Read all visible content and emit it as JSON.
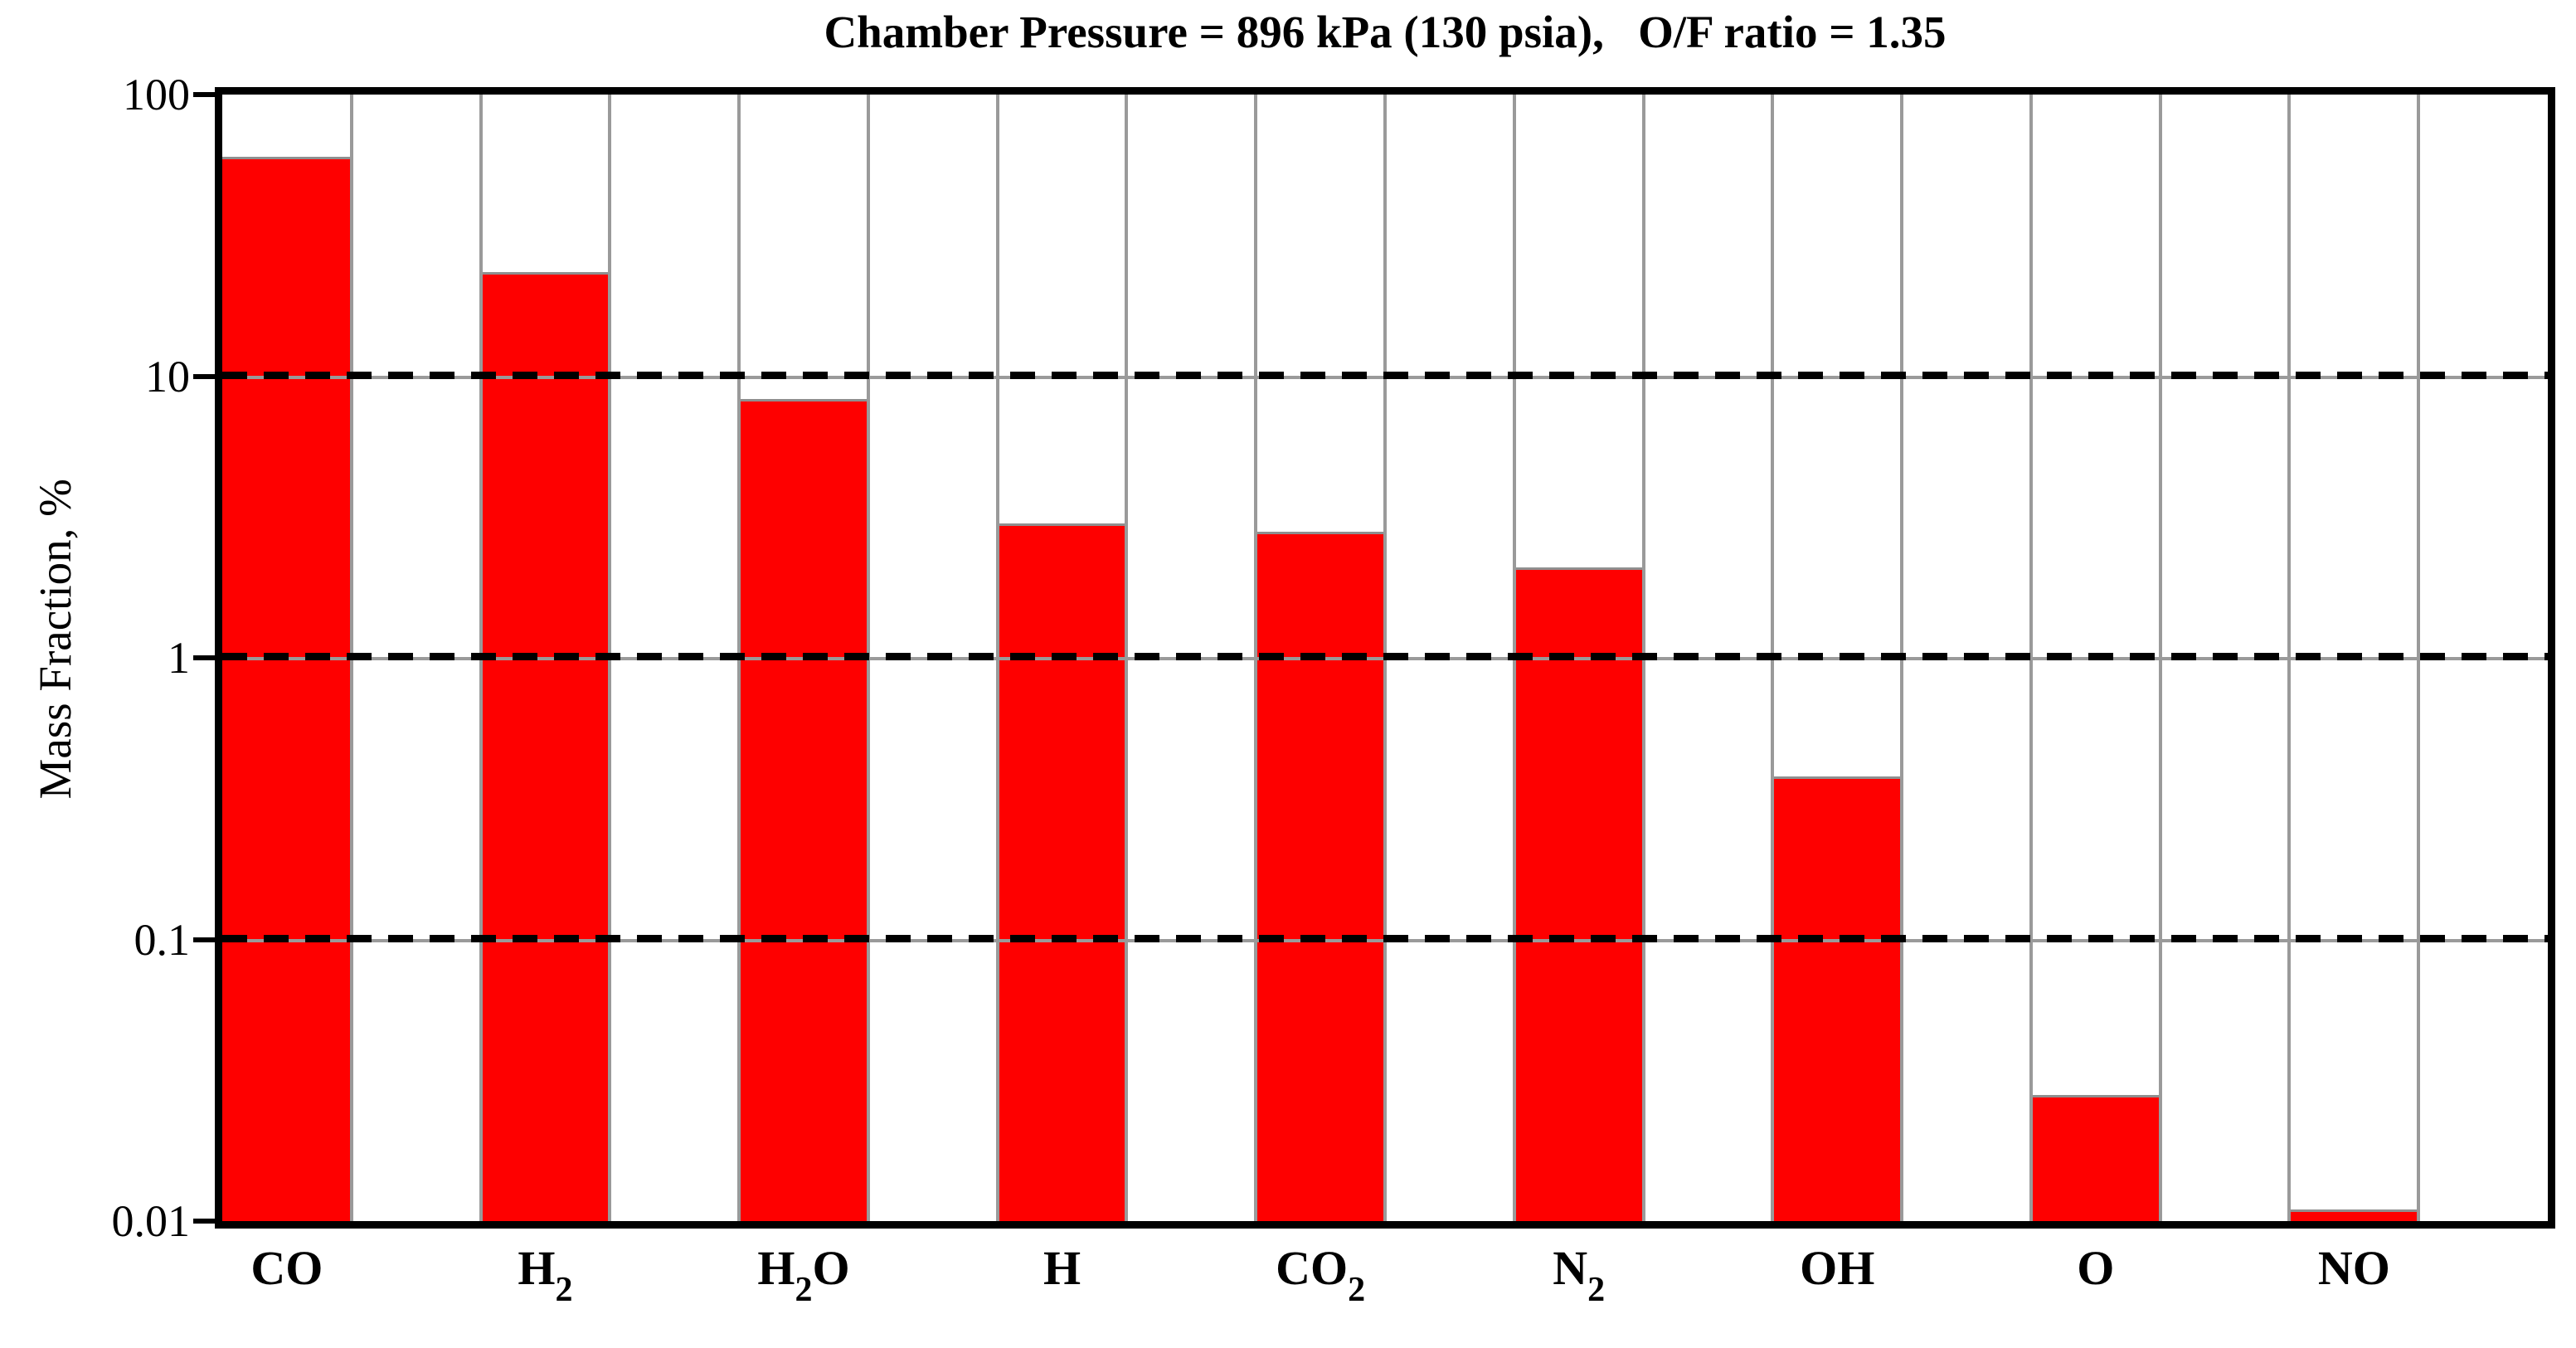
{
  "chart_data": {
    "type": "bar",
    "title": "Chamber Pressure = 896 kPa (130 psia),   O/F ratio = 1.35",
    "ylabel": "Mass Fraction, %",
    "yscale": "log",
    "ylim": [
      0.01,
      100
    ],
    "grid": "on",
    "legend": "none",
    "categories": [
      "CO",
      "H2",
      "H2O",
      "H",
      "CO2",
      "N2",
      "OH",
      "O",
      "NO"
    ],
    "categories_rich": [
      {
        "main": "CO"
      },
      {
        "main": "H",
        "sub": "2"
      },
      {
        "main": "H",
        "sub": "2",
        "tail": "O"
      },
      {
        "main": "H"
      },
      {
        "main": "CO",
        "sub": "2"
      },
      {
        "main": "N",
        "sub": "2"
      },
      {
        "main": "OH"
      },
      {
        "main": "O"
      },
      {
        "main": "NO"
      }
    ],
    "values": [
      60,
      23.5,
      8.3,
      3.0,
      2.8,
      2.1,
      0.38,
      0.028,
      0.011
    ],
    "dashed_gridline_values": [
      10,
      1,
      0.1
    ],
    "bar_color": "#fe0000",
    "bar_edge_color": "#8f8f8f",
    "grid_color": "#9a9a9a",
    "frame_color": "#000000"
  },
  "y_axis": {
    "label": "Mass Fraction, %",
    "tick_labels": [
      "100",
      "10",
      "1",
      "0.1",
      "0.01"
    ],
    "tick_values": [
      100,
      10,
      1,
      0.1,
      0.01
    ]
  }
}
